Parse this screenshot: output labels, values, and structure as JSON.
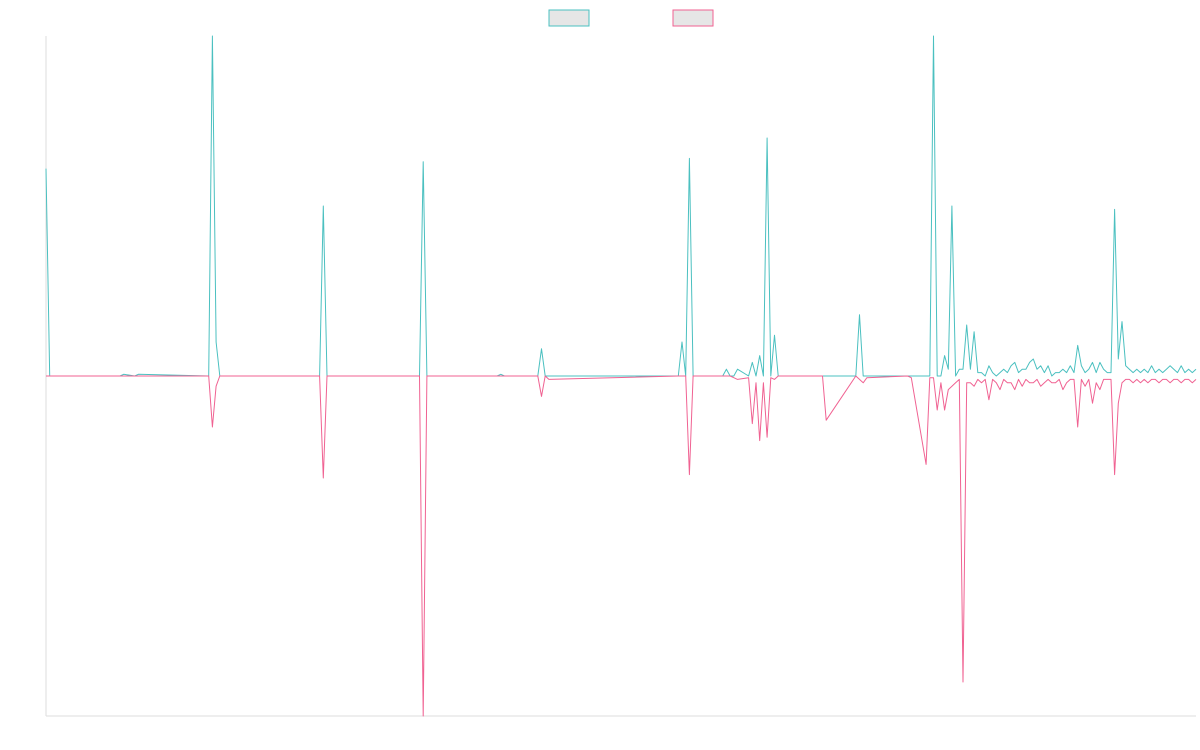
{
  "chart_data": {
    "type": "line",
    "title": "",
    "xlabel": "",
    "ylabel": "",
    "grid": false,
    "legend_placement": "top-center",
    "ylim": [
      -1,
      1
    ],
    "x": [
      0,
      1,
      20,
      21,
      24,
      25,
      44,
      45,
      46,
      47,
      74,
      75,
      76,
      101,
      102,
      103,
      122,
      123,
      124,
      133,
      134,
      135,
      136,
      171,
      172,
      173,
      174,
      175,
      183,
      184,
      185,
      186,
      187,
      190,
      191,
      192,
      193,
      194,
      195,
      196,
      197,
      198,
      199,
      200,
      201,
      210,
      211,
      219,
      220,
      221,
      222,
      233,
      234,
      238,
      239,
      240,
      241,
      242,
      243,
      244,
      245,
      246,
      247,
      248,
      249,
      250,
      251,
      252,
      253,
      254,
      255,
      256,
      257,
      258,
      259,
      260,
      261,
      262,
      263,
      264,
      265,
      266,
      267,
      268,
      269,
      270,
      271,
      272,
      273,
      274,
      275,
      276,
      277,
      278,
      279,
      280,
      281,
      282,
      283,
      284,
      285,
      286,
      287,
      288,
      289,
      290,
      291,
      292,
      293,
      294,
      295,
      296,
      297,
      298,
      299,
      300,
      301,
      302,
      303,
      304,
      305,
      306,
      307,
      308,
      309,
      310,
      311
    ],
    "series": [
      {
        "color": "#4bc0c0",
        "values": [
          0.61,
          0.0,
          0.0,
          0.005,
          0.0,
          0.005,
          0.0,
          1.0,
          0.1,
          0.0,
          0.0,
          0.5,
          0.0,
          0.0,
          0.63,
          0.0,
          0.0,
          0.005,
          0.0,
          0.0,
          0.08,
          0.0,
          0.0,
          0.0,
          0.1,
          0.0,
          0.64,
          0.0,
          0.0,
          0.02,
          0.0,
          0.0,
          0.02,
          0.0,
          0.04,
          0.0,
          0.06,
          0.0,
          0.7,
          0.0,
          0.12,
          0.0,
          0.0,
          0.0,
          0.0,
          0.0,
          0.0,
          0.0,
          0.18,
          0.0,
          0.0,
          0.0,
          0.0,
          0.0,
          0.0,
          1.0,
          0.0,
          0.0,
          0.06,
          0.02,
          0.5,
          0.0,
          0.02,
          0.02,
          0.15,
          0.02,
          0.13,
          0.01,
          0.01,
          0.0,
          0.03,
          0.01,
          0.0,
          0.01,
          0.02,
          0.01,
          0.03,
          0.04,
          0.01,
          0.02,
          0.02,
          0.04,
          0.05,
          0.02,
          0.03,
          0.01,
          0.03,
          0.0,
          0.01,
          0.01,
          0.02,
          0.01,
          0.03,
          0.01,
          0.09,
          0.03,
          0.01,
          0.02,
          0.04,
          0.01,
          0.04,
          0.02,
          0.01,
          0.01,
          0.49,
          0.05,
          0.16,
          0.03,
          0.02,
          0.01,
          0.02,
          0.01,
          0.02,
          0.01,
          0.03,
          0.01,
          0.02,
          0.01,
          0.02,
          0.03,
          0.02,
          0.01,
          0.03,
          0.01,
          0.02,
          0.01,
          0.02
        ]
      },
      {
        "color": "#f06292",
        "values": [
          0.0,
          0.0,
          0.0,
          0.0,
          0.0,
          0.0,
          0.0,
          -0.15,
          -0.03,
          0.0,
          0.0,
          -0.3,
          0.0,
          0.0,
          -1.0,
          0.0,
          0.0,
          0.0,
          0.0,
          0.0,
          -0.06,
          0.0,
          -0.01,
          0.0,
          0.0,
          0.0,
          -0.29,
          0.0,
          0.0,
          0.0,
          0.0,
          -0.005,
          -0.01,
          -0.005,
          -0.14,
          -0.02,
          -0.19,
          -0.02,
          -0.18,
          -0.005,
          -0.01,
          0.0,
          0.0,
          0.0,
          0.0,
          0.0,
          -0.13,
          0.0,
          -0.01,
          -0.02,
          -0.005,
          0.0,
          -0.005,
          -0.26,
          -0.005,
          -0.005,
          -0.1,
          -0.02,
          -0.1,
          -0.04,
          -0.03,
          -0.02,
          -0.01,
          -0.9,
          -0.02,
          -0.02,
          -0.03,
          -0.01,
          -0.02,
          -0.01,
          -0.07,
          -0.01,
          -0.02,
          -0.04,
          -0.01,
          -0.02,
          -0.02,
          -0.04,
          -0.01,
          -0.03,
          -0.01,
          -0.02,
          -0.02,
          -0.01,
          -0.03,
          -0.02,
          -0.01,
          -0.02,
          -0.02,
          -0.01,
          -0.04,
          -0.02,
          -0.01,
          -0.01,
          -0.15,
          -0.01,
          -0.03,
          -0.01,
          -0.08,
          -0.02,
          -0.04,
          -0.01,
          -0.01,
          -0.01,
          -0.29,
          -0.08,
          -0.02,
          -0.01,
          -0.01,
          -0.02,
          -0.01,
          -0.02,
          -0.01,
          -0.02,
          -0.01,
          -0.01,
          -0.02,
          -0.01,
          -0.01,
          -0.02,
          -0.01,
          -0.01,
          -0.02,
          -0.01,
          -0.01,
          -0.02,
          -0.01
        ]
      }
    ]
  }
}
